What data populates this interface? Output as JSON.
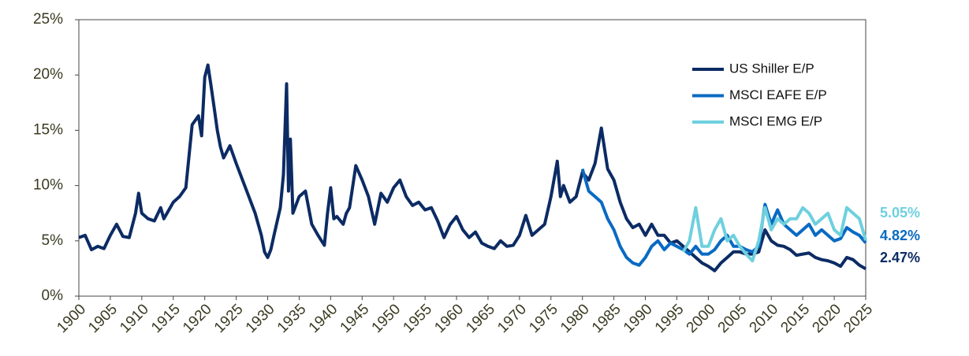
{
  "chart_data": {
    "type": "line",
    "xlim": [
      1900,
      2025
    ],
    "xticks": [
      1900,
      1905,
      1910,
      1915,
      1920,
      1925,
      1930,
      1935,
      1940,
      1945,
      1950,
      1955,
      1960,
      1965,
      1970,
      1975,
      1980,
      1985,
      1990,
      1995,
      2000,
      2005,
      2010,
      2015,
      2020,
      2025
    ],
    "ylim": [
      0,
      25
    ],
    "yticks": [
      {
        "value": 0,
        "label": "0%"
      },
      {
        "value": 5,
        "label": "5%"
      },
      {
        "value": 10,
        "label": "10%"
      },
      {
        "value": 15,
        "label": "15%"
      },
      {
        "value": 20,
        "label": "20%"
      },
      {
        "value": 25,
        "label": "25%"
      }
    ],
    "legend": "upper right",
    "series": [
      {
        "name": "US Shiller E/P",
        "color": "#0c2b64",
        "last_label": "2.47%",
        "x": [
          1900,
          1901,
          1902,
          1903,
          1904,
          1905,
          1906,
          1907,
          1908,
          1909,
          1909.5,
          1910,
          1911,
          1912,
          1913,
          1913.5,
          1914,
          1915,
          1916,
          1917,
          1918,
          1919,
          1919.5,
          1920,
          1920.5,
          1921,
          1921.5,
          1922,
          1922.5,
          1923,
          1924,
          1925,
          1926,
          1927,
          1928,
          1929,
          1929.5,
          1930,
          1930.5,
          1931,
          1932,
          1932.5,
          1933,
          1933.3,
          1933.6,
          1934,
          1935,
          1936,
          1937,
          1938,
          1939,
          1939.5,
          1940,
          1940.5,
          1941,
          1942,
          1942.5,
          1943,
          1944,
          1945,
          1946,
          1947,
          1948,
          1949,
          1950,
          1951,
          1952,
          1953,
          1954,
          1955,
          1956,
          1957,
          1958,
          1959,
          1960,
          1961,
          1962,
          1963,
          1964,
          1965,
          1966,
          1967,
          1968,
          1969,
          1970,
          1971,
          1972,
          1973,
          1974,
          1975,
          1976,
          1976.5,
          1977,
          1978,
          1979,
          1980,
          1981,
          1982,
          1983,
          1984,
          1985,
          1986,
          1987,
          1988,
          1989,
          1990,
          1991,
          1992,
          1993,
          1994,
          1995,
          1996,
          1997,
          1998,
          1999,
          2000,
          2001,
          2002,
          2003,
          2004,
          2005,
          2006,
          2007,
          2008,
          2009,
          2010,
          2011,
          2012,
          2013,
          2014,
          2015,
          2016,
          2017,
          2018,
          2019,
          2020,
          2021,
          2022,
          2023,
          2024,
          2025
        ],
        "values": [
          5.3,
          5.5,
          4.2,
          4.5,
          4.3,
          5.5,
          6.5,
          5.4,
          5.3,
          7.5,
          9.3,
          7.5,
          7.0,
          6.8,
          8.0,
          7.0,
          7.5,
          8.5,
          9.0,
          9.8,
          15.5,
          16.3,
          14.5,
          19.8,
          20.9,
          19.0,
          17.0,
          15.0,
          13.5,
          12.5,
          13.6,
          12.0,
          10.5,
          9.0,
          7.5,
          5.5,
          4.0,
          3.5,
          4.2,
          5.5,
          8.0,
          11.0,
          19.2,
          9.5,
          14.2,
          7.5,
          9.0,
          9.5,
          6.5,
          5.5,
          4.6,
          7.5,
          9.8,
          7.0,
          7.2,
          6.5,
          7.5,
          8.0,
          11.8,
          10.5,
          9.0,
          6.5,
          9.3,
          8.5,
          9.8,
          10.5,
          9.0,
          8.2,
          8.5,
          7.8,
          8.0,
          6.8,
          5.3,
          6.5,
          7.2,
          6.0,
          5.3,
          5.8,
          4.8,
          4.5,
          4.3,
          5.0,
          4.5,
          4.6,
          5.5,
          7.3,
          5.5,
          6.0,
          6.5,
          9.0,
          12.2,
          9.0,
          10.0,
          8.5,
          9.0,
          11.2,
          10.5,
          12.0,
          15.2,
          11.5,
          10.5,
          8.5,
          7.0,
          6.2,
          6.5,
          5.5,
          6.5,
          5.5,
          5.5,
          4.8,
          5.0,
          4.5,
          4.0,
          3.5,
          3.0,
          2.7,
          2.3,
          3.0,
          3.5,
          4.0,
          4.0,
          3.8,
          3.8,
          4.0,
          6.0,
          5.0,
          4.6,
          4.5,
          4.2,
          3.7,
          3.8,
          3.9,
          3.5,
          3.3,
          3.2,
          3.0,
          2.7,
          3.5,
          3.3,
          2.8,
          2.47
        ]
      },
      {
        "name": "MSCI EAFE E/P",
        "color": "#0a6ac2",
        "last_label": "4.82%",
        "x": [
          1980,
          1981,
          1982,
          1983,
          1984,
          1985,
          1986,
          1987,
          1988,
          1989,
          1990,
          1991,
          1992,
          1993,
          1994,
          1995,
          1996,
          1997,
          1998,
          1999,
          2000,
          2001,
          2002,
          2003,
          2004,
          2005,
          2006,
          2007,
          2008,
          2009,
          2010,
          2011,
          2012,
          2013,
          2014,
          2015,
          2016,
          2017,
          2018,
          2019,
          2020,
          2021,
          2022,
          2023,
          2024,
          2025
        ],
        "values": [
          11.5,
          9.5,
          9.0,
          8.5,
          7.0,
          6.0,
          4.5,
          3.5,
          3.0,
          2.8,
          3.5,
          4.5,
          5.0,
          4.2,
          4.8,
          4.5,
          4.2,
          3.8,
          4.5,
          3.8,
          3.8,
          4.2,
          5.0,
          5.5,
          4.5,
          4.5,
          4.2,
          4.0,
          4.5,
          8.3,
          6.5,
          7.8,
          6.5,
          6.0,
          5.5,
          6.0,
          6.5,
          5.5,
          6.0,
          5.5,
          5.0,
          5.2,
          6.2,
          5.8,
          5.5,
          4.82
        ]
      },
      {
        "name": "MSCI EMG E/P",
        "color": "#6ed0de",
        "last_label": "5.05%",
        "x": [
          1996,
          1997,
          1998,
          1999,
          2000,
          2001,
          2002,
          2003,
          2004,
          2005,
          2006,
          2007,
          2008,
          2009,
          2010,
          2011,
          2012,
          2013,
          2014,
          2015,
          2016,
          2017,
          2018,
          2019,
          2020,
          2021,
          2022,
          2023,
          2024,
          2025
        ],
        "values": [
          4.0,
          5.0,
          8.0,
          4.5,
          4.5,
          6.0,
          7.0,
          5.0,
          5.5,
          4.5,
          3.8,
          3.2,
          5.0,
          8.0,
          6.0,
          7.0,
          6.5,
          7.0,
          7.0,
          8.0,
          7.5,
          6.5,
          7.0,
          7.5,
          6.0,
          5.5,
          8.0,
          7.5,
          7.0,
          5.05
        ]
      }
    ]
  }
}
